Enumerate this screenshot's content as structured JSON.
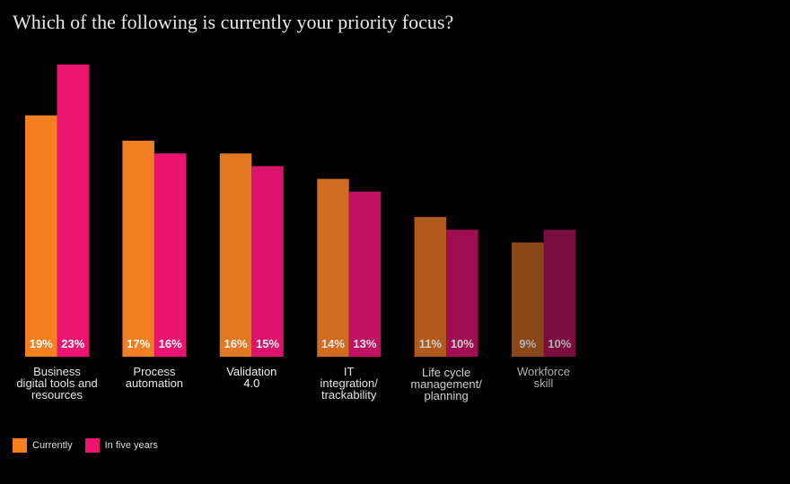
{
  "chart_data": {
    "type": "bar",
    "title": "Which of the following is currently your priority focus?",
    "xlabel": "",
    "ylabel": "",
    "ylim": [
      0,
      23
    ],
    "grid": false,
    "legend_position": "bottom-left",
    "categories": [
      "Business digital tools and resources",
      "Process automation",
      "Validation 4.0",
      "IT integration/ trackability",
      "Life cycle management/ planning",
      "Workforce skill"
    ],
    "category_lines": [
      [
        "Business",
        "digital tools and",
        "resources"
      ],
      [
        "Process",
        "automation"
      ],
      [
        "Validation",
        "4.0"
      ],
      [
        "IT",
        "integration/",
        "trackability"
      ],
      [
        "Life cycle",
        "management/",
        "planning"
      ],
      [
        "Workforce",
        "skill"
      ]
    ],
    "series": [
      {
        "name": "Currently",
        "values": [
          19,
          17,
          16,
          14,
          11,
          9
        ],
        "labels": [
          "19%",
          "17%",
          "16%",
          "14%",
          "11%",
          "9%"
        ],
        "colors": [
          "#f58020",
          "#f27f22",
          "#e37822",
          "#d06c20",
          "#b05a1c",
          "#8a4818"
        ]
      },
      {
        "name": "In five years",
        "values": [
          23,
          16,
          15,
          13,
          10,
          10
        ],
        "labels": [
          "23%",
          "16%",
          "15%",
          "13%",
          "10%",
          "10%"
        ],
        "colors": [
          "#ec1470",
          "#ea1470",
          "#dc136a",
          "#c21062",
          "#a00e52",
          "#7a0c40"
        ]
      }
    ],
    "label_colors": [
      "#ffffff",
      "#ffffff",
      "#f4f4f4",
      "#e6e6e6",
      "#cfcfcf",
      "#b0b0b0"
    ],
    "legend": [
      {
        "name": "Currently",
        "color": "#f58020"
      },
      {
        "name": "In five years",
        "color": "#ec1470"
      }
    ]
  }
}
